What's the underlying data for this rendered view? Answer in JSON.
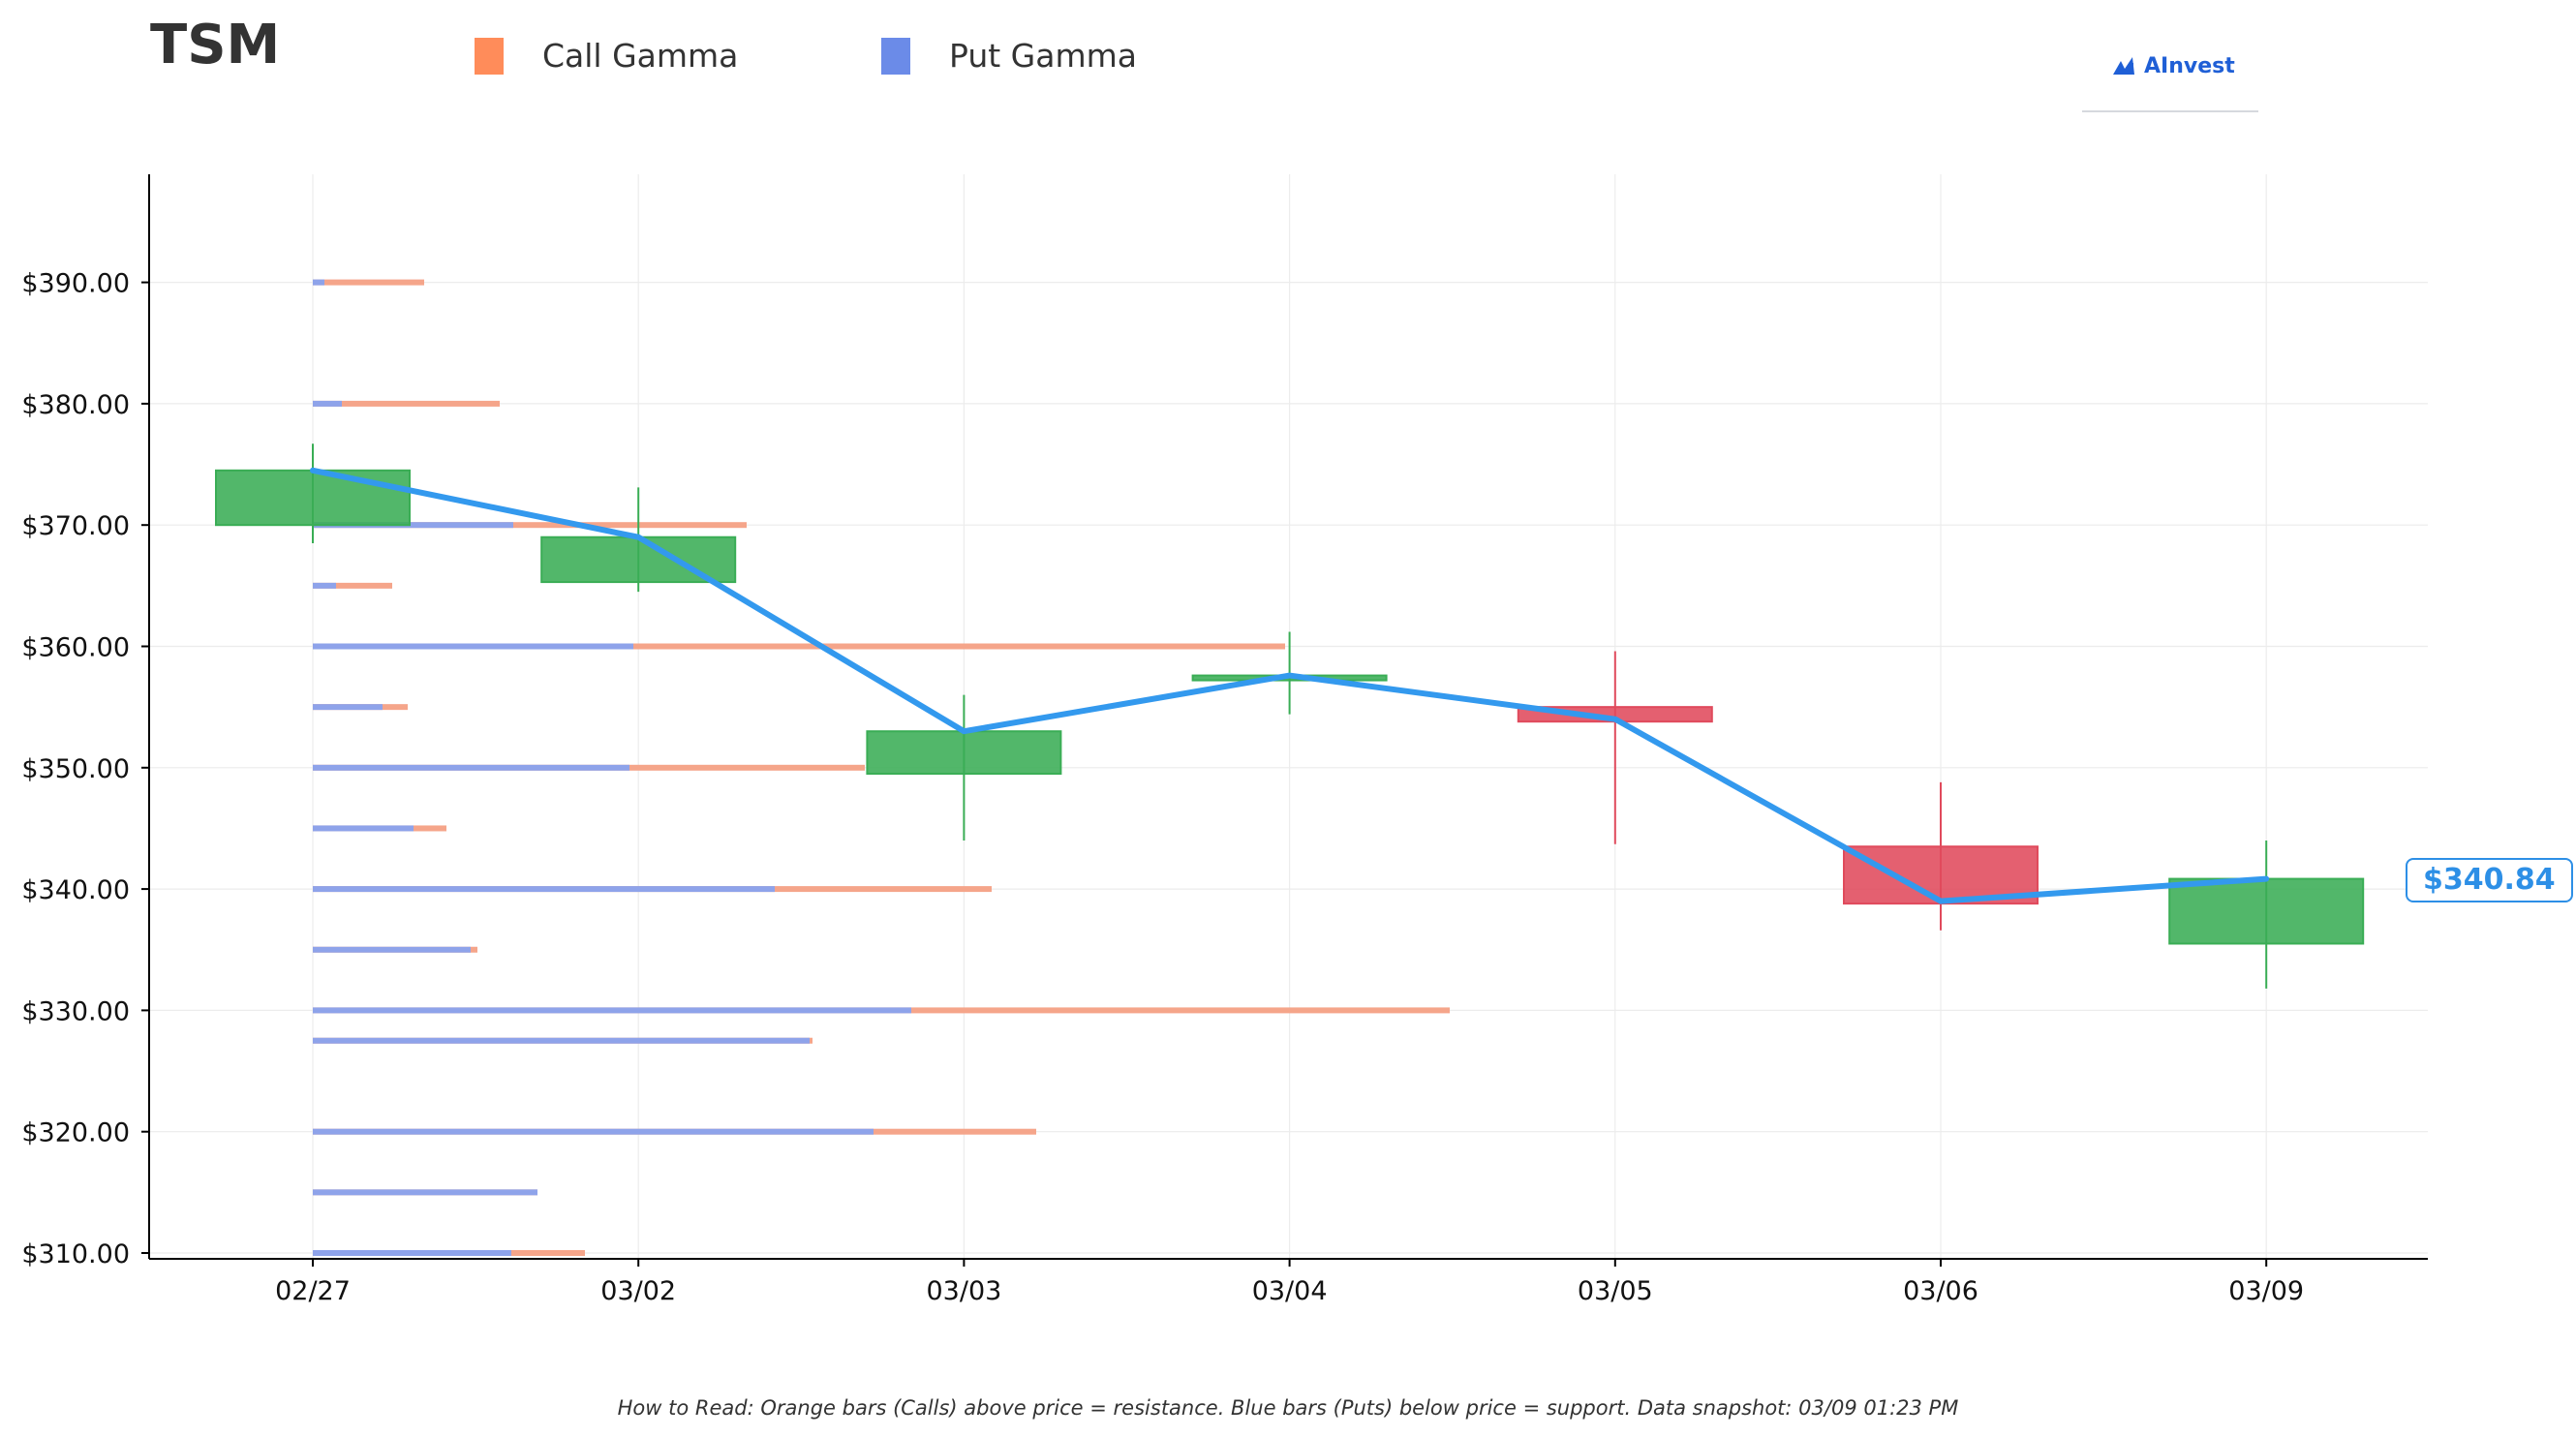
{
  "header": {
    "ticker": "TSM",
    "legend": [
      {
        "label": "Call Gamma",
        "color": "#ff8c5a"
      },
      {
        "label": "Put Gamma",
        "color": "#6b8be8"
      }
    ],
    "logo_text": "AInvest"
  },
  "footnote": "How to Read: Orange bars (Calls) above price = resistance. Blue bars (Puts) below price = support. Data snapshot: 03/09 01:23 PM",
  "current_price_label": "$340.84",
  "chart_data": {
    "type": "candlestick",
    "x_categories": [
      "02/27",
      "03/02",
      "03/03",
      "03/04",
      "03/05",
      "03/06",
      "03/09"
    ],
    "y_ticks": [
      310,
      320,
      330,
      340,
      350,
      360,
      370,
      380,
      390
    ],
    "y_tick_labels": [
      "$310.00",
      "$320.00",
      "$330.00",
      "$340.00",
      "$350.00",
      "$360.00",
      "$370.00",
      "$380.00",
      "$390.00"
    ],
    "ylim": [
      309.5,
      399
    ],
    "grid": true,
    "candles": [
      {
        "date": "02/27",
        "open": 370.0,
        "close": 374.5,
        "high": 376.7,
        "low": 368.5
      },
      {
        "date": "03/02",
        "open": 365.3,
        "close": 369.0,
        "high": 373.1,
        "low": 364.5
      },
      {
        "date": "03/03",
        "open": 349.5,
        "close": 353.0,
        "high": 356.0,
        "low": 344.0
      },
      {
        "date": "03/04",
        "open": 357.3,
        "close": 357.6,
        "high": 361.2,
        "low": 354.4
      },
      {
        "date": "03/05",
        "open": 355.0,
        "close": 353.8,
        "high": 359.6,
        "low": 343.7
      },
      {
        "date": "03/06",
        "open": 343.5,
        "close": 338.8,
        "high": 348.8,
        "low": 336.6
      },
      {
        "date": "03/09",
        "open": 335.5,
        "close": 340.84,
        "high": 344.0,
        "low": 331.8
      }
    ],
    "close_line": [
      374.5,
      369.0,
      353.0,
      357.6,
      354.0,
      339.0,
      340.84
    ],
    "gamma_bars": [
      {
        "strike": 390,
        "put": 0.12,
        "call": 1.15
      },
      {
        "strike": 380,
        "put": 0.3,
        "call": 1.93
      },
      {
        "strike": 370,
        "put": 2.07,
        "call": 4.48
      },
      {
        "strike": 365,
        "put": 0.24,
        "call": 0.82
      },
      {
        "strike": 360,
        "put": 3.31,
        "call": 10.04
      },
      {
        "strike": 355,
        "put": 0.72,
        "call": 0.98
      },
      {
        "strike": 350,
        "put": 3.27,
        "call": 5.7
      },
      {
        "strike": 345,
        "put": 1.04,
        "call": 1.38
      },
      {
        "strike": 340,
        "put": 4.77,
        "call": 7.01
      },
      {
        "strike": 335,
        "put": 1.63,
        "call": 1.7
      },
      {
        "strike": 330,
        "put": 6.18,
        "call": 11.74
      },
      {
        "strike": 327.5,
        "put": 5.13,
        "call": 5.16
      },
      {
        "strike": 320,
        "put": 5.79,
        "call": 7.47
      },
      {
        "strike": 315,
        "put": 2.32,
        "call": 2.32
      },
      {
        "strike": 310,
        "put": 2.05,
        "call": 2.81
      }
    ],
    "colors": {
      "up": "#3aad55",
      "down": "#e04a5c",
      "close_line": "#3399ee",
      "call_bar": "#f5a58a",
      "put_bar": "#8ea3ea"
    }
  }
}
